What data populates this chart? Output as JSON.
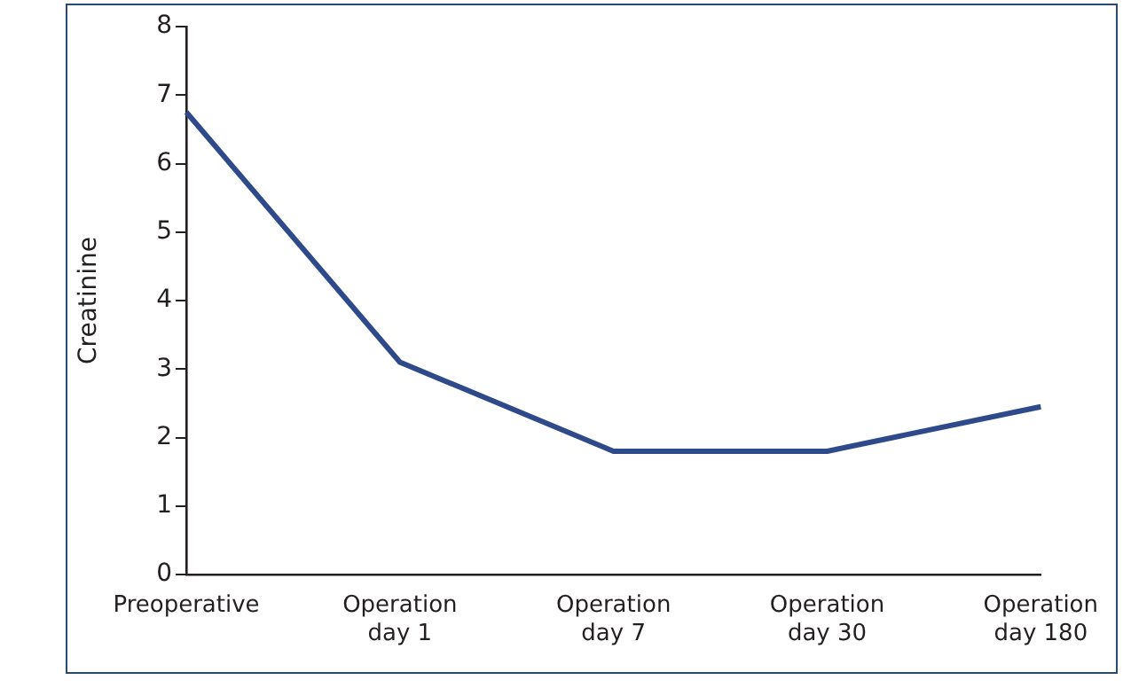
{
  "chart_data": {
    "type": "line",
    "ylabel": "Creatinine",
    "categories": [
      "Preoperative",
      "Operation day 1",
      "Operation day 7",
      "Operation day 30",
      "Operation day 180"
    ],
    "series": [
      {
        "color": "#2e4a8a",
        "values": [
          6.75,
          3.1,
          1.8,
          1.8,
          2.45
        ]
      }
    ],
    "ylim": [
      0,
      8
    ],
    "yticks": [
      0,
      1,
      2,
      3,
      4,
      5,
      6,
      7,
      8
    ],
    "grid": false,
    "legend": false,
    "marker": "none",
    "line_style": "solid"
  }
}
